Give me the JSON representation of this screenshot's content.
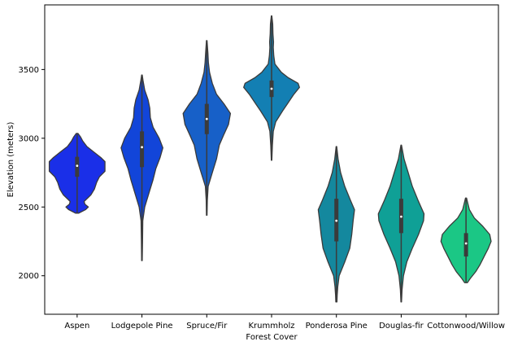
{
  "chart_data": {
    "type": "violin",
    "xlabel": "Forest Cover",
    "ylabel": "Elevation (meters)",
    "ylim": [
      1720,
      3970
    ],
    "yticks": [
      2000,
      2500,
      3000,
      3500
    ],
    "grid": false,
    "legend": "none",
    "categories": [
      {
        "name": "Aspen",
        "color": "#1a2fe8",
        "min": 2455,
        "max": 3035,
        "q1": 2720,
        "median": 2800,
        "q3": 2865,
        "density": [
          [
            2455,
            0.05
          ],
          [
            2480,
            0.3
          ],
          [
            2500,
            0.4
          ],
          [
            2520,
            0.28
          ],
          [
            2540,
            0.25
          ],
          [
            2560,
            0.35
          ],
          [
            2590,
            0.5
          ],
          [
            2630,
            0.62
          ],
          [
            2680,
            0.7
          ],
          [
            2720,
            0.8
          ],
          [
            2760,
            1.0
          ],
          [
            2800,
            1.0
          ],
          [
            2830,
            1.0
          ],
          [
            2860,
            0.85
          ],
          [
            2900,
            0.6
          ],
          [
            2940,
            0.35
          ],
          [
            2980,
            0.2
          ],
          [
            3010,
            0.12
          ],
          [
            3035,
            0.03
          ]
        ]
      },
      {
        "name": "Lodgepole Pine",
        "color": "#1245d9",
        "min": 2110,
        "max": 3460,
        "q1": 2790,
        "median": 2935,
        "q3": 3050,
        "density": [
          [
            2110,
            0.01
          ],
          [
            2250,
            0.02
          ],
          [
            2400,
            0.03
          ],
          [
            2500,
            0.1
          ],
          [
            2600,
            0.25
          ],
          [
            2700,
            0.4
          ],
          [
            2780,
            0.5
          ],
          [
            2860,
            0.65
          ],
          [
            2930,
            0.75
          ],
          [
            3000,
            0.62
          ],
          [
            3080,
            0.4
          ],
          [
            3150,
            0.3
          ],
          [
            3220,
            0.28
          ],
          [
            3280,
            0.22
          ],
          [
            3350,
            0.1
          ],
          [
            3420,
            0.04
          ],
          [
            3460,
            0.01
          ]
        ]
      },
      {
        "name": "Spruce/Fir",
        "color": "#1760c8",
        "min": 2440,
        "max": 3710,
        "q1": 3030,
        "median": 3140,
        "q3": 3250,
        "density": [
          [
            2440,
            0.01
          ],
          [
            2550,
            0.02
          ],
          [
            2650,
            0.05
          ],
          [
            2750,
            0.2
          ],
          [
            2850,
            0.35
          ],
          [
            2950,
            0.45
          ],
          [
            3030,
            0.62
          ],
          [
            3100,
            0.78
          ],
          [
            3180,
            0.85
          ],
          [
            3250,
            0.62
          ],
          [
            3320,
            0.35
          ],
          [
            3400,
            0.2
          ],
          [
            3480,
            0.1
          ],
          [
            3550,
            0.06
          ],
          [
            3620,
            0.04
          ],
          [
            3710,
            0.01
          ]
        ]
      },
      {
        "name": "Krummholz",
        "color": "#137fb3",
        "min": 2840,
        "max": 3890,
        "q1": 3300,
        "median": 3360,
        "q3": 3420,
        "density": [
          [
            2840,
            0.01
          ],
          [
            2950,
            0.03
          ],
          [
            3050,
            0.06
          ],
          [
            3120,
            0.15
          ],
          [
            3200,
            0.4
          ],
          [
            3260,
            0.6
          ],
          [
            3320,
            0.8
          ],
          [
            3370,
            1.0
          ],
          [
            3400,
            0.95
          ],
          [
            3440,
            0.6
          ],
          [
            3480,
            0.35
          ],
          [
            3540,
            0.12
          ],
          [
            3600,
            0.08
          ],
          [
            3660,
            0.06
          ],
          [
            3700,
            0.07
          ],
          [
            3760,
            0.05
          ],
          [
            3830,
            0.04
          ],
          [
            3890,
            0.01
          ]
        ]
      },
      {
        "name": "Ponderosa Pine",
        "color": "#14889e",
        "min": 1810,
        "max": 2940,
        "q1": 2250,
        "median": 2400,
        "q3": 2560,
        "density": [
          [
            1810,
            0.02
          ],
          [
            1860,
            0.03
          ],
          [
            1920,
            0.05
          ],
          [
            2000,
            0.1
          ],
          [
            2100,
            0.3
          ],
          [
            2200,
            0.48
          ],
          [
            2300,
            0.55
          ],
          [
            2400,
            0.6
          ],
          [
            2480,
            0.65
          ],
          [
            2550,
            0.5
          ],
          [
            2650,
            0.3
          ],
          [
            2750,
            0.15
          ],
          [
            2850,
            0.06
          ],
          [
            2940,
            0.01
          ]
        ]
      },
      {
        "name": "Douglas-fir",
        "color": "#0fa096",
        "min": 1810,
        "max": 2950,
        "q1": 2310,
        "median": 2430,
        "q3": 2560,
        "density": [
          [
            1810,
            0.01
          ],
          [
            1900,
            0.03
          ],
          [
            2000,
            0.08
          ],
          [
            2100,
            0.2
          ],
          [
            2200,
            0.4
          ],
          [
            2300,
            0.62
          ],
          [
            2400,
            0.8
          ],
          [
            2450,
            0.82
          ],
          [
            2550,
            0.6
          ],
          [
            2650,
            0.4
          ],
          [
            2750,
            0.25
          ],
          [
            2850,
            0.1
          ],
          [
            2950,
            0.01
          ]
        ]
      },
      {
        "name": "Cottonwood/Willow",
        "color": "#1bc785",
        "min": 1950,
        "max": 2565,
        "q1": 2140,
        "median": 2235,
        "q3": 2310,
        "density": [
          [
            1950,
            0.05
          ],
          [
            1980,
            0.15
          ],
          [
            2030,
            0.35
          ],
          [
            2080,
            0.5
          ],
          [
            2140,
            0.65
          ],
          [
            2200,
            0.8
          ],
          [
            2250,
            0.9
          ],
          [
            2300,
            0.85
          ],
          [
            2360,
            0.6
          ],
          [
            2420,
            0.3
          ],
          [
            2480,
            0.12
          ],
          [
            2530,
            0.06
          ],
          [
            2565,
            0.02
          ]
        ]
      }
    ]
  }
}
